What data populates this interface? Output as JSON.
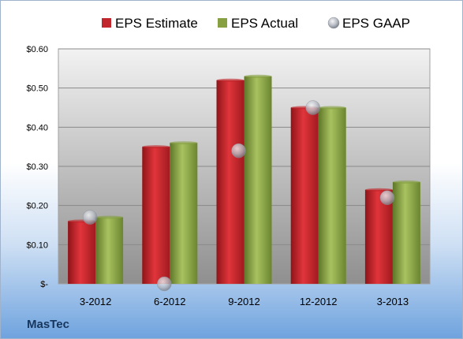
{
  "company": "MasTec",
  "chart_data": {
    "type": "bar",
    "categories": [
      "3-2012",
      "6-2012",
      "9-2012",
      "12-2012",
      "3-2013"
    ],
    "series": [
      {
        "name": "EPS Estimate",
        "kind": "bar",
        "color": "#c0262c",
        "values": [
          0.16,
          0.35,
          0.52,
          0.45,
          0.24
        ]
      },
      {
        "name": "EPS Actual",
        "kind": "bar",
        "color": "#86a042",
        "values": [
          0.17,
          0.36,
          0.53,
          0.45,
          0.26
        ]
      },
      {
        "name": "EPS GAAP",
        "kind": "scatter",
        "color": "#b8bcc4",
        "values": [
          0.17,
          0.0,
          0.34,
          0.45,
          0.22
        ]
      }
    ],
    "ylim": [
      0,
      0.6
    ],
    "yticks": [
      0,
      0.1,
      0.2,
      0.3,
      0.4,
      0.5,
      0.6
    ],
    "ytick_labels": [
      "$-",
      "$0.10",
      "$0.20",
      "$0.30",
      "$0.40",
      "$0.50",
      "$0.60"
    ],
    "grid": true,
    "legend_position": "top"
  }
}
